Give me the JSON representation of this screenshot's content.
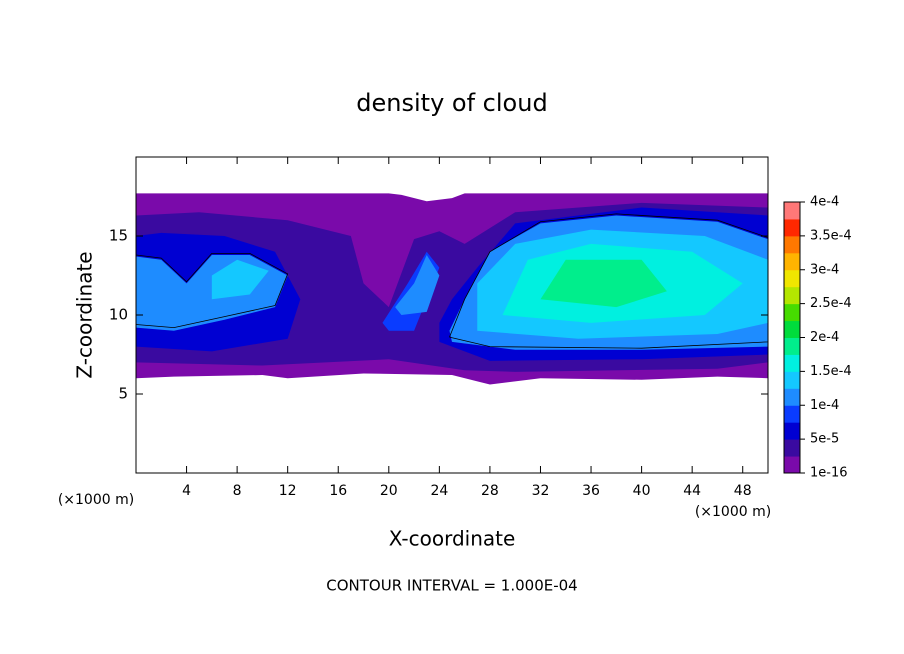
{
  "chart_data": {
    "type": "contour",
    "title": "density of cloud",
    "xlabel": "X-coordinate",
    "ylabel": "Z-coordinate",
    "x_unit": "(×1000 m)",
    "y_unit": "(×1000 m)",
    "annotation": "CONTOUR INTERVAL = 1.000E-04",
    "xlim": [
      0,
      50
    ],
    "ylim": [
      0,
      20
    ],
    "xticks": [
      4,
      8,
      12,
      16,
      20,
      24,
      28,
      32,
      36,
      40,
      44,
      48
    ],
    "yticks": [
      5,
      10,
      15
    ],
    "clim": [
      1e-16,
      0.0004
    ],
    "colors": [
      "#7a0aaa",
      "#3a0aa0",
      "#0000d2",
      "#0a3cff",
      "#1e8cff",
      "#14c8ff",
      "#00f0e0",
      "#00ee8c",
      "#00dc3c",
      "#46dc00",
      "#b4e600",
      "#f0e600",
      "#ffb400",
      "#ff7800",
      "#ff2800",
      "#ff7878"
    ],
    "cticks": [
      {
        "value": 1e-16,
        "label": "1e-16"
      },
      {
        "value": 5e-05,
        "label": "5e-5"
      },
      {
        "value": 0.0001,
        "label": "1e-4"
      },
      {
        "value": 0.00015,
        "label": "1.5e-4"
      },
      {
        "value": 0.0002,
        "label": "2e-4"
      },
      {
        "value": 0.00025,
        "label": "2.5e-4"
      },
      {
        "value": 0.0003,
        "label": "3e-4"
      },
      {
        "value": 0.00035,
        "label": "3.5e-4"
      },
      {
        "value": 0.0004,
        "label": "4e-4"
      }
    ],
    "regions": [
      {
        "value": 1e-05,
        "x": [
          0,
          3,
          10,
          12,
          18,
          25,
          28,
          32,
          40,
          46,
          50,
          50,
          26,
          25,
          23,
          21,
          20,
          0
        ],
        "y": [
          6,
          6.1,
          6.2,
          6,
          6.3,
          6.2,
          5.6,
          6,
          5.9,
          6.1,
          6,
          17.7,
          17.7,
          17.4,
          17.2,
          17.6,
          17.7,
          17.7
        ]
      },
      {
        "value": 3e-05,
        "x": [
          0,
          10,
          20,
          26,
          30,
          46,
          50,
          50,
          40,
          30,
          26,
          24,
          22,
          20,
          18,
          17,
          12,
          5,
          0
        ],
        "y": [
          7,
          6.8,
          7.2,
          6.5,
          6.4,
          6.6,
          7,
          16.8,
          17.1,
          16.5,
          14.5,
          15.3,
          14.8,
          10.5,
          12,
          15,
          16,
          16.5,
          16.3
        ]
      },
      {
        "value": 6e-05,
        "x": [
          0,
          6,
          12,
          13,
          11,
          7,
          2,
          0
        ],
        "y": [
          8,
          7.7,
          8.5,
          11,
          14,
          15,
          15.2,
          15
        ]
      },
      {
        "value": 6e-05,
        "x": [
          24,
          28,
          40,
          50,
          50,
          40,
          30,
          27,
          25,
          24
        ],
        "y": [
          8.3,
          7.1,
          7.2,
          7.5,
          16.3,
          16.8,
          15.8,
          13,
          11,
          9.5
        ]
      },
      {
        "value": 8e-05,
        "x": [
          20,
          22,
          24,
          23,
          21.5,
          19.5
        ],
        "y": [
          9,
          9,
          13,
          14,
          12,
          9.5
        ]
      },
      {
        "value": 0.00011,
        "x": [
          25,
          30,
          40,
          50,
          50,
          46,
          38,
          32,
          28,
          26,
          24.8
        ],
        "y": [
          8.3,
          7.8,
          7.8,
          8,
          14.8,
          15.9,
          16.3,
          15.8,
          14,
          11,
          9
        ]
      },
      {
        "value": 0.00011,
        "x": [
          0,
          3,
          7,
          11,
          12,
          9,
          6,
          4,
          2,
          0
        ],
        "y": [
          9.2,
          9,
          9.7,
          10.5,
          12.5,
          13.8,
          13.8,
          12,
          13.5,
          13.7
        ]
      },
      {
        "value": 0.00011,
        "x": [
          21,
          23,
          24,
          23,
          22,
          20.5
        ],
        "y": [
          10,
          10.2,
          12.5,
          13.8,
          12,
          10.5
        ]
      },
      {
        "value": 0.00013,
        "x": [
          27,
          35,
          46,
          50,
          50,
          45,
          36,
          30,
          27
        ],
        "y": [
          9,
          8.5,
          8.8,
          9.5,
          13.5,
          15,
          15.4,
          14.5,
          12
        ]
      },
      {
        "value": 0.00013,
        "x": [
          6,
          9,
          10.5,
          8,
          6
        ],
        "y": [
          11,
          11.3,
          12.8,
          13.5,
          12.5
        ]
      },
      {
        "value": 0.00016,
        "x": [
          29,
          36,
          45,
          48,
          44,
          36,
          31
        ],
        "y": [
          10,
          9.5,
          10,
          12,
          14,
          14.5,
          13.5
        ]
      },
      {
        "value": 0.00018,
        "x": [
          32,
          38,
          42,
          40,
          34
        ],
        "y": [
          11,
          10.5,
          11.5,
          13.5,
          13.5
        ]
      }
    ],
    "contours": [
      {
        "value": 0.0001,
        "x": [
          24.8,
          28,
          40,
          50,
          50,
          46,
          38,
          32,
          28,
          26,
          24.8
        ],
        "y": [
          8.6,
          8,
          7.9,
          8.3,
          14.9,
          16,
          16.4,
          15.9,
          14,
          11,
          8.6
        ]
      },
      {
        "value": 0.0001,
        "x": [
          0,
          3,
          7,
          11,
          12,
          9,
          6,
          4,
          2,
          0
        ],
        "y": [
          9.4,
          9.2,
          9.9,
          10.6,
          12.6,
          13.9,
          13.9,
          12.1,
          13.6,
          13.8
        ]
      }
    ]
  }
}
